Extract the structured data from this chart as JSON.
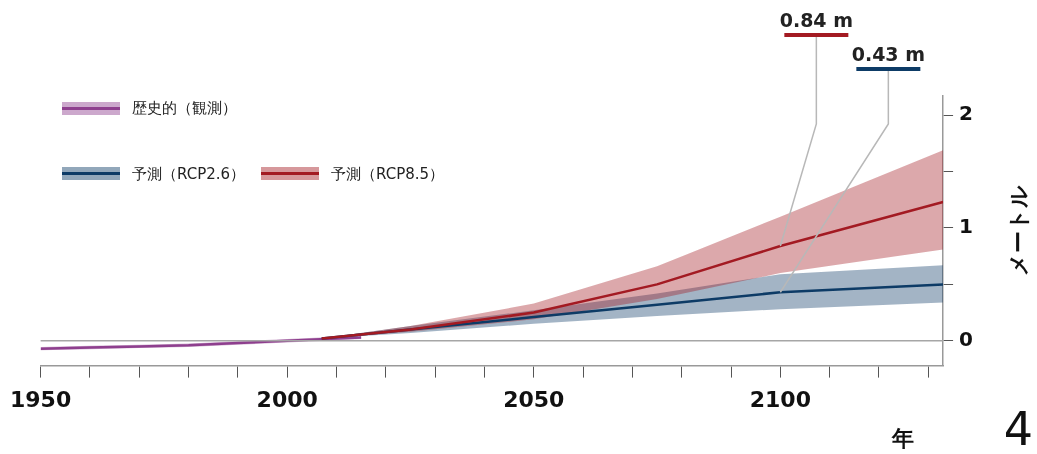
{
  "chart_data": {
    "type": "line",
    "xlabel": "年",
    "ylabel": "メートル",
    "xlim": [
      1950,
      2133
    ],
    "ylim": [
      -0.22,
      2.17
    ],
    "xticks": [
      1950,
      {
        "value": 1960,
        "label": null
      },
      {
        "value": 1970,
        "label": null
      },
      {
        "value": 1980,
        "label": null
      },
      {
        "value": 1990,
        "label": null
      },
      2000,
      {
        "value": 2010,
        "label": null
      },
      {
        "value": 2020,
        "label": null
      },
      {
        "value": 2030,
        "label": null
      },
      {
        "value": 2040,
        "label": null
      },
      2050,
      {
        "value": 2060,
        "label": null
      },
      {
        "value": 2070,
        "label": null
      },
      {
        "value": 2080,
        "label": null
      },
      {
        "value": 2090,
        "label": null
      },
      2100,
      {
        "value": 2110,
        "label": null
      },
      {
        "value": 2120,
        "label": null
      },
      {
        "value": 2130,
        "label": null
      }
    ],
    "yticks": [
      0,
      {
        "value": 0.5,
        "label": null
      },
      1,
      {
        "value": 1.5,
        "label": null
      },
      2
    ],
    "grid": false,
    "legend": "top left",
    "marker": "none",
    "line_style": "solid",
    "ref_lines": [
      {
        "axis": "y",
        "value": 0,
        "color": "#a6a6a6"
      }
    ],
    "series": [
      {
        "name": "歴史的（観測）",
        "color": "#8e3f8e",
        "x": [
          1950,
          1960,
          1970,
          1980,
          1990,
          2000,
          2010,
          2015
        ],
        "values": [
          -0.07,
          -0.06,
          -0.05,
          -0.04,
          -0.02,
          0,
          0.02,
          0.03
        ],
        "lower": [
          -0.085,
          -0.075,
          -0.065,
          -0.055,
          -0.035,
          -0.015,
          0.005,
          0.015
        ],
        "upper": [
          -0.055,
          -0.045,
          -0.035,
          -0.025,
          -0.005,
          0.015,
          0.035,
          0.045
        ]
      },
      {
        "name": "予測（RCP2.6）",
        "color": "#0d3b66",
        "x": [
          2007,
          2025,
          2050,
          2075,
          2100,
          2133
        ],
        "values": [
          0.02,
          0.1,
          0.21,
          0.32,
          0.43,
          0.5
        ],
        "lower": [
          0.02,
          0.07,
          0.15,
          0.22,
          0.28,
          0.34
        ],
        "upper": [
          0.02,
          0.13,
          0.27,
          0.42,
          0.59,
          0.67
        ]
      },
      {
        "name": "予測（RCP8.5）",
        "color": "#a31a22",
        "x": [
          2007,
          2025,
          2050,
          2075,
          2100,
          2133
        ],
        "values": [
          0.02,
          0.1,
          0.25,
          0.5,
          0.84,
          1.23
        ],
        "lower": [
          0.02,
          0.08,
          0.19,
          0.37,
          0.6,
          0.81
        ],
        "upper": [
          0.02,
          0.13,
          0.33,
          0.66,
          1.1,
          1.69
        ]
      }
    ],
    "annotations": [
      {
        "text": "0.84 m",
        "x": 2100,
        "y": 0.84
      },
      {
        "text": "0.43 m",
        "x": 2100,
        "y": 0.43
      },
      "4"
    ]
  }
}
